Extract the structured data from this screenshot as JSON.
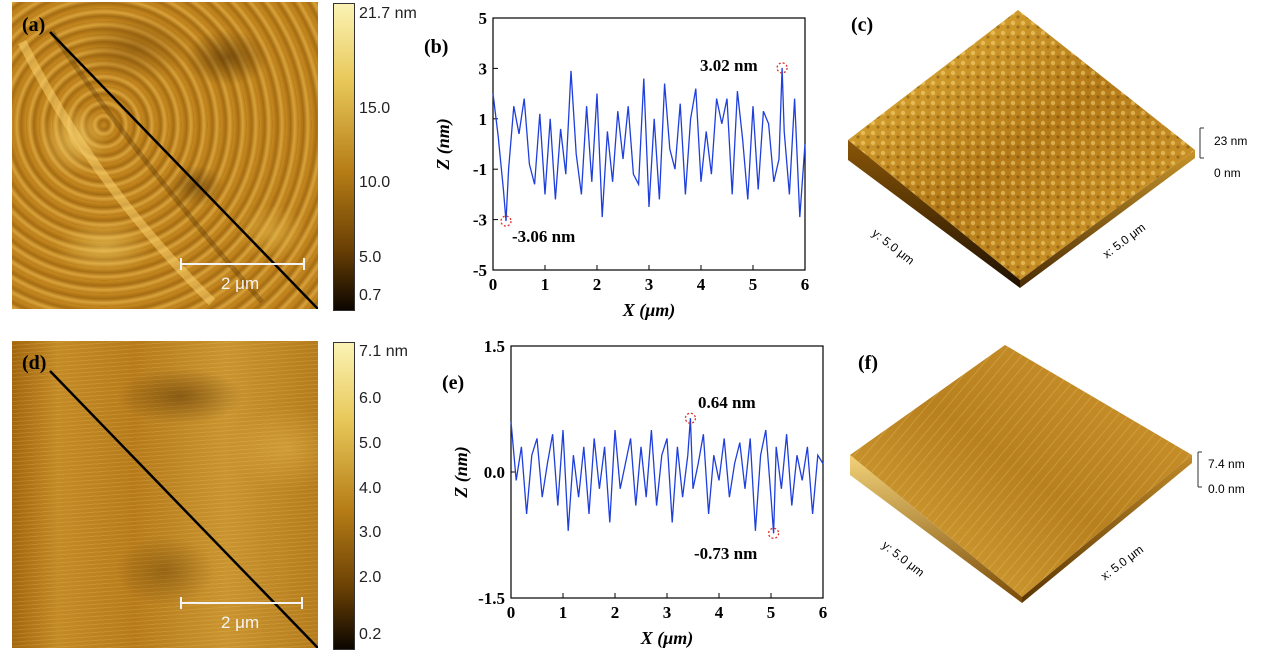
{
  "panels": {
    "a": {
      "label": "(a)",
      "scalebar": "2 μm",
      "colorbar": {
        "top": "21.7 nm",
        "ticks": [
          "15.0",
          "10.0",
          "5.0",
          "0.7"
        ]
      }
    },
    "b": {
      "label": "(b)",
      "peak_label": "3.02 nm",
      "valley_label": "-3.06 nm"
    },
    "c": {
      "label": "(c)",
      "z_top": "23 nm",
      "z_bottom": "0 nm",
      "y_axis": "y: 5.0 μm",
      "x_axis": "x: 5.0 μm"
    },
    "d": {
      "label": "(d)",
      "scalebar": "2 μm",
      "colorbar": {
        "top": "7.1 nm",
        "ticks": [
          "6.0",
          "5.0",
          "4.0",
          "3.0",
          "2.0",
          "0.2"
        ]
      }
    },
    "e": {
      "label": "(e)",
      "peak_label": "0.64 nm",
      "valley_label": "-0.73 nm"
    },
    "f": {
      "label": "(f)",
      "z_top": "7.4 nm",
      "z_bottom": "0.0 nm",
      "y_axis": "y: 5.0 μm",
      "x_axis": "x: 5.0 μm"
    }
  },
  "colors": {
    "afm_light": "#f2d36a",
    "afm_mid": "#b97f1c",
    "afm_dark": "#3a2202",
    "line": "#1f3fdc",
    "marker": "#e0302a"
  },
  "chart_data": [
    {
      "type": "line",
      "panel": "b",
      "xlabel": "X (μm)",
      "ylabel": "Z (nm)",
      "xlim": [
        0,
        6
      ],
      "ylim": [
        -5,
        5
      ],
      "xticks": [
        "0",
        "1",
        "2",
        "3",
        "4",
        "5",
        "6"
      ],
      "yticks": [
        "5",
        "3",
        "1",
        "-1",
        "-3",
        "-5"
      ],
      "series": [
        {
          "x": [
            0,
            0.1,
            0.2,
            0.25,
            0.3,
            0.4,
            0.5,
            0.6,
            0.7,
            0.8,
            0.9,
            1.0,
            1.1,
            1.2,
            1.3,
            1.4,
            1.5,
            1.6,
            1.7,
            1.8,
            1.9,
            2.0,
            2.1,
            2.2,
            2.3,
            2.4,
            2.5,
            2.6,
            2.7,
            2.8,
            2.9,
            3.0,
            3.1,
            3.2,
            3.3,
            3.4,
            3.5,
            3.6,
            3.7,
            3.8,
            3.9,
            4.0,
            4.1,
            4.2,
            4.3,
            4.4,
            4.5,
            4.6,
            4.7,
            4.8,
            4.9,
            5.0,
            5.1,
            5.2,
            5.3,
            5.4,
            5.5,
            5.56,
            5.6,
            5.7,
            5.8,
            5.9,
            6.0
          ],
          "y": [
            2.0,
            0.3,
            -1.8,
            -3.06,
            -1.0,
            1.5,
            0.4,
            1.8,
            -0.8,
            -1.6,
            1.2,
            -2.0,
            1.0,
            -2.2,
            0.6,
            -1.2,
            2.9,
            -0.4,
            -2.0,
            1.5,
            -1.5,
            2.0,
            -2.9,
            0.5,
            -1.5,
            1.3,
            -0.6,
            1.5,
            -1.2,
            -1.6,
            2.6,
            -2.5,
            1.0,
            -2.2,
            2.4,
            -0.2,
            -1.0,
            1.6,
            -2.0,
            1.0,
            2.2,
            -1.5,
            0.5,
            -1.2,
            1.8,
            0.8,
            1.8,
            -2.0,
            2.1,
            0.2,
            -2.2,
            1.5,
            -1.8,
            1.3,
            0.8,
            -1.5,
            -0.6,
            3.02,
            0.5,
            -2.0,
            1.8,
            -2.9,
            0.0
          ]
        }
      ],
      "annotations": [
        {
          "x": 5.56,
          "y": 3.02,
          "text": "3.02 nm"
        },
        {
          "x": 0.25,
          "y": -3.06,
          "text": "-3.06 nm"
        }
      ]
    },
    {
      "type": "line",
      "panel": "e",
      "xlabel": "X (μm)",
      "ylabel": "Z (nm)",
      "xlim": [
        0,
        6
      ],
      "ylim": [
        -1.5,
        1.5
      ],
      "xticks": [
        "0",
        "1",
        "2",
        "3",
        "4",
        "5",
        "6"
      ],
      "yticks": [
        "1.5",
        "0.0",
        "-1.5"
      ],
      "series": [
        {
          "x": [
            0,
            0.1,
            0.2,
            0.3,
            0.4,
            0.5,
            0.6,
            0.7,
            0.8,
            0.9,
            1.0,
            1.1,
            1.2,
            1.3,
            1.4,
            1.5,
            1.6,
            1.7,
            1.8,
            1.9,
            2.0,
            2.1,
            2.2,
            2.3,
            2.4,
            2.5,
            2.6,
            2.7,
            2.8,
            2.9,
            3.0,
            3.1,
            3.2,
            3.3,
            3.4,
            3.45,
            3.5,
            3.6,
            3.7,
            3.8,
            3.9,
            4.0,
            4.1,
            4.2,
            4.3,
            4.4,
            4.5,
            4.6,
            4.7,
            4.8,
            4.9,
            5.0,
            5.05,
            5.1,
            5.2,
            5.3,
            5.4,
            5.5,
            5.6,
            5.7,
            5.8,
            5.9,
            6.0
          ],
          "y": [
            0.6,
            -0.1,
            0.3,
            -0.5,
            0.2,
            0.4,
            -0.3,
            0.1,
            0.45,
            -0.4,
            0.5,
            -0.7,
            0.2,
            -0.3,
            0.3,
            -0.5,
            0.4,
            -0.2,
            0.3,
            -0.6,
            0.5,
            -0.2,
            0.1,
            0.4,
            -0.4,
            0.3,
            -0.3,
            0.5,
            -0.4,
            0.2,
            0.4,
            -0.6,
            0.3,
            -0.3,
            0.2,
            0.64,
            -0.2,
            0.1,
            0.45,
            -0.5,
            0.2,
            -0.1,
            0.4,
            -0.3,
            0.1,
            0.35,
            -0.2,
            0.4,
            -0.7,
            0.2,
            0.5,
            -0.3,
            -0.73,
            0.3,
            -0.2,
            0.45,
            -0.4,
            0.2,
            -0.1,
            0.3,
            -0.5,
            0.2,
            0.1
          ]
        }
      ],
      "annotations": [
        {
          "x": 3.45,
          "y": 0.64,
          "text": "0.64 nm"
        },
        {
          "x": 5.05,
          "y": -0.73,
          "text": "-0.73 nm"
        }
      ]
    }
  ]
}
